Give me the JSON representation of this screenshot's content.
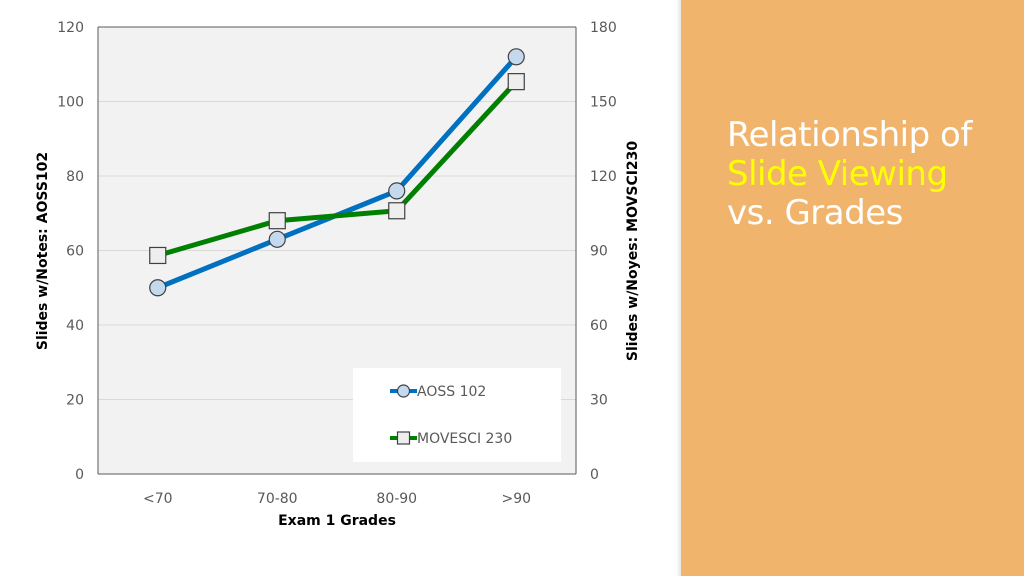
{
  "colors": {
    "panel": "#F0B46C",
    "panel_text": "#FFFFFF",
    "highlight_text": "#FFFF00",
    "plot_background": "#F2F2F2",
    "gridline": "#D9D9D9",
    "aoss_line": "#0070C0",
    "movesci_line": "#008000",
    "marker_aoss_fill": "#C5D9EE",
    "marker_movesci_fill": "#EEEEEE",
    "marker_stroke": "#404040"
  },
  "title_panel": {
    "line1": "Relationship of",
    "line2": "Slide Viewing",
    "line3": "vs. Grades"
  },
  "chart_data": {
    "type": "line",
    "categories": [
      "<70",
      "70-80",
      "80-90",
      ">90"
    ],
    "title": "",
    "xlabel": "Exam 1 Grades",
    "ylabel": "Slides w/Notes: AOSS102",
    "y2label": "Slides w/Noyes: MOVSCI230",
    "ylim": [
      0,
      120
    ],
    "yticks": [
      0,
      20,
      40,
      60,
      80,
      100,
      120
    ],
    "y2lim": [
      0,
      180
    ],
    "y2ticks": [
      0,
      30,
      60,
      90,
      120,
      150,
      180
    ],
    "grid": true,
    "legend_position": "bottom-right",
    "series": [
      {
        "name": "AOSS 102",
        "axis": "left",
        "marker": "circle",
        "values": [
          50,
          63,
          76,
          112
        ]
      },
      {
        "name": "MOVESCI 230",
        "axis": "right",
        "marker": "square",
        "values": [
          88,
          102,
          106,
          158
        ]
      }
    ]
  }
}
